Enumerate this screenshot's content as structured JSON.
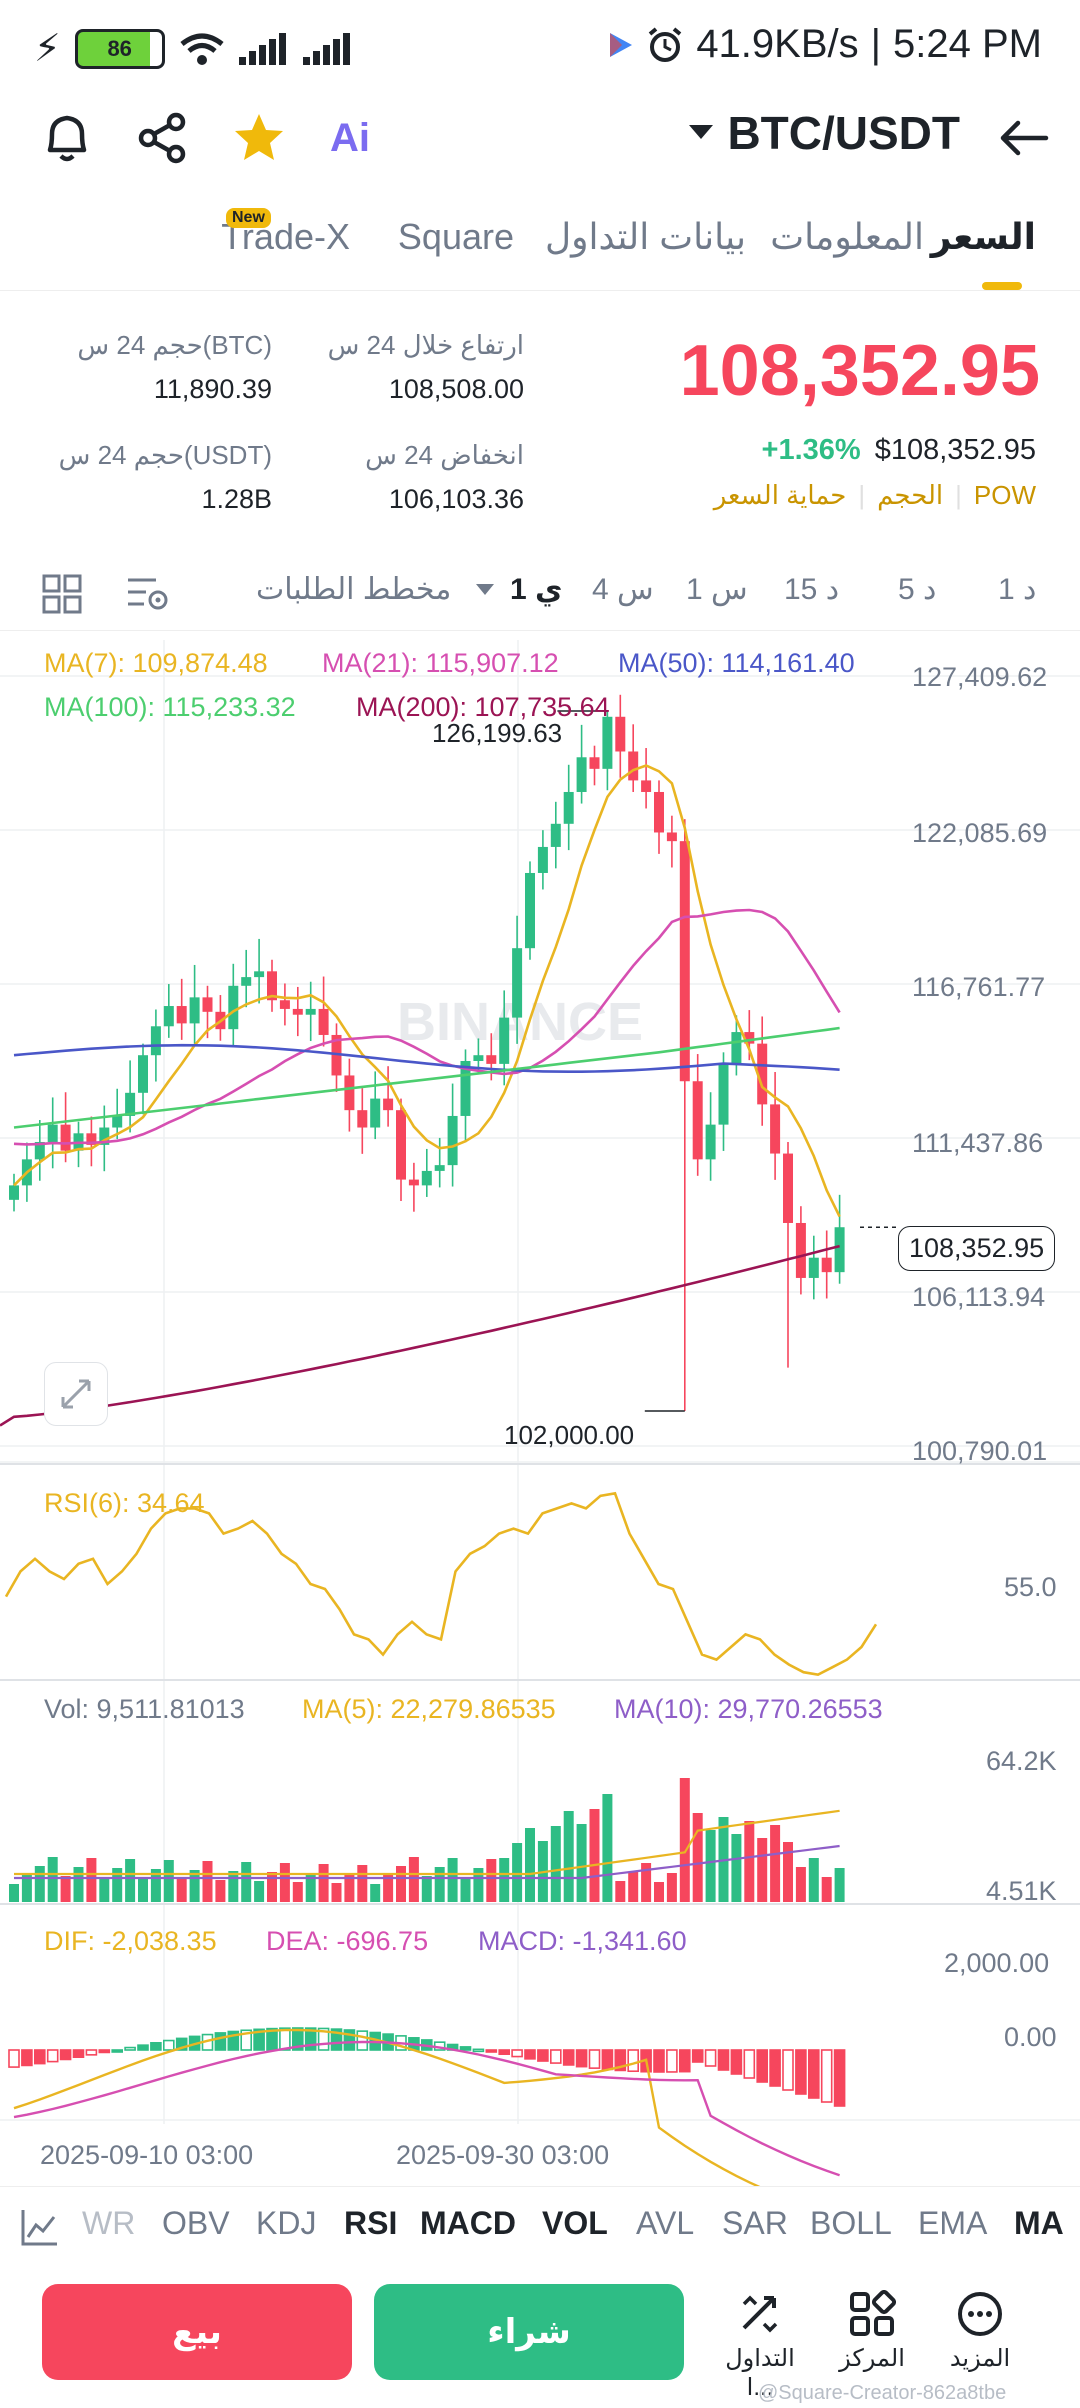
{
  "status_bar": {
    "battery": "86",
    "net_speed": "41.9KB/s",
    "separator": "|",
    "time": "5:24 PM"
  },
  "header": {
    "pair": "BTC/USDT",
    "ai_label": "Ai"
  },
  "tabs": [
    {
      "label": "السعر"
    },
    {
      "label": "المعلومات"
    },
    {
      "label": "بيانات التداول"
    },
    {
      "label": "Square"
    },
    {
      "label": "Trade-X"
    }
  ],
  "new_badge": "New",
  "price_panel": {
    "price": "108,352.95",
    "price_usd": "$108,352.95",
    "change": "+1.36%",
    "tags": [
      "POW",
      "الحجم",
      "حماية السعر"
    ],
    "high_label": "ارتفاع خلال 24 س",
    "high_value": "108,508.00",
    "low_label": "انخفاض 24 س",
    "low_value": "106,103.36",
    "vol_btc_label": "حجم 24 س(BTC)",
    "vol_btc_value": "11,890.39",
    "vol_usdt_label": "حجم 24 س(USDT)",
    "vol_usdt_value": "1.28B"
  },
  "timeframes": [
    "1 د",
    "5 د",
    "15 د",
    "1 س",
    "4 س",
    "1 ي"
  ],
  "order_book_label": "مخطط الطلبات",
  "ma_labels": {
    "ma7": "MA(7): 109,874.48",
    "ma21": "MA(21): 115,907.12",
    "ma50": "MA(50): 114,161.40",
    "ma100": "MA(100): 115,233.32",
    "ma200": "MA(200): 107,735.64"
  },
  "price_axis": [
    "127,409.62",
    "122,085.69",
    "116,761.77",
    "111,437.86",
    "106,113.94",
    "100,790.01"
  ],
  "current_price_tag": "108,352.95",
  "high_marker": "126,199.63",
  "low_marker": "102,000.00",
  "watermark": "BINANCE",
  "rsi": {
    "label": "RSI(6): 34.64",
    "axis": "55.0"
  },
  "volume": {
    "vol_label": "Vol: 9,511.81013",
    "ma5_label": "MA(5): 22,279.86535",
    "ma10_label": "MA(10): 29,770.26553",
    "axis_top": "64.2K",
    "axis_bottom": "4.51K"
  },
  "macd": {
    "dif_label": "DIF: -2,038.35",
    "dea_label": "DEA: -696.75",
    "macd_label": "MACD: -1,341.60",
    "axis_top": "2,000.00",
    "axis_mid": "0.00"
  },
  "dates": [
    "2025-09-10 03:00",
    "2025-09-30 03:00"
  ],
  "indicators": [
    "MA",
    "EMA",
    "BOLL",
    "SAR",
    "AVL",
    "VOL",
    "MACD",
    "RSI",
    "KDJ",
    "OBV",
    "WR"
  ],
  "bottom_actions": [
    "المزيد",
    "المركز",
    "التداول ا..."
  ],
  "buy_label": "شراء",
  "sell_label": "بيع",
  "watermark_footer": "@Square-Creator-862a8tbe",
  "colors": {
    "up": "#2ebd85",
    "down": "#f6465d",
    "accent": "#f0b90b",
    "ma7": "#e9b522",
    "ma21": "#d64fb1",
    "ma50": "#4a57c8",
    "ma100": "#4cce6f",
    "ma200": "#9b1454"
  }
}
